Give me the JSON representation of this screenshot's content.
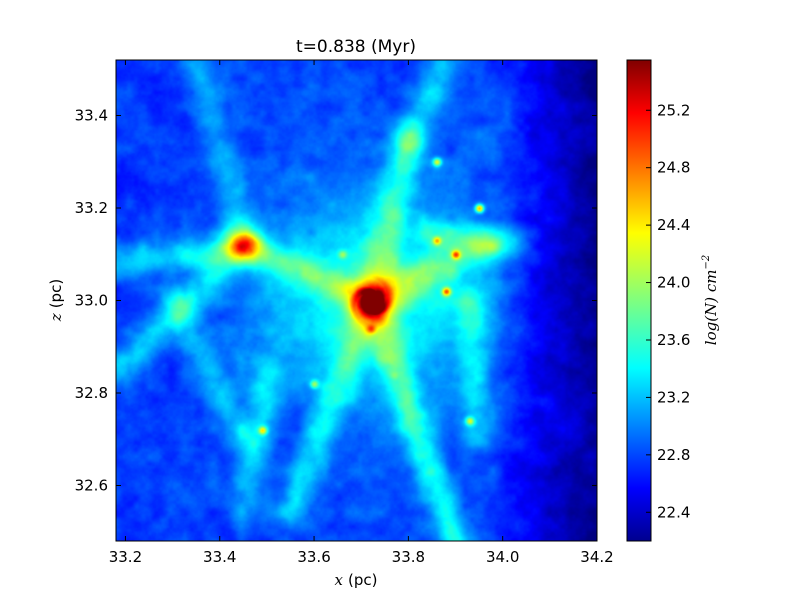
{
  "chart_data": {
    "type": "heatmap",
    "title": "t=0.838 (Myr)",
    "xlabel_var": "x",
    "xlabel_unit": "(pc)",
    "ylabel_var": "z",
    "ylabel_unit": "(pc)",
    "xlim": [
      33.18,
      34.2
    ],
    "ylim": [
      32.48,
      33.52
    ],
    "xticks": [
      "33.2",
      "33.4",
      "33.6",
      "33.8",
      "34.0",
      "34.2"
    ],
    "yticks": [
      "32.6",
      "32.8",
      "33.0",
      "33.2",
      "33.4"
    ],
    "colorbar": {
      "label": "log(N) cm^{-2}",
      "label_main": "log(N) cm",
      "label_exp": "−2",
      "range": [
        22.2,
        25.55
      ],
      "ticks": [
        "22.4",
        "22.8",
        "23.2",
        "23.6",
        "24.0",
        "24.4",
        "24.8",
        "25.2"
      ],
      "colormap": "jet"
    },
    "field": {
      "background_left_top": 22.7,
      "background_right_edge": 22.25,
      "typical_filament": 23.4,
      "core_peak": 25.3,
      "core_center": [
        33.72,
        33.0
      ],
      "dense_clumps": [
        {
          "x": 33.72,
          "z": 33.0,
          "value": 25.3
        },
        {
          "x": 33.72,
          "z": 32.94,
          "value": 25.0
        },
        {
          "x": 33.86,
          "z": 33.13,
          "value": 24.6
        },
        {
          "x": 33.9,
          "z": 33.1,
          "value": 25.0
        },
        {
          "x": 33.88,
          "z": 33.02,
          "value": 24.9
        },
        {
          "x": 33.95,
          "z": 33.2,
          "value": 24.5
        },
        {
          "x": 33.86,
          "z": 33.3,
          "value": 24.2
        },
        {
          "x": 33.49,
          "z": 32.72,
          "value": 24.4
        },
        {
          "x": 33.93,
          "z": 32.74,
          "value": 24.2
        },
        {
          "x": 33.6,
          "z": 32.82,
          "value": 24.0
        },
        {
          "x": 33.77,
          "z": 32.84,
          "value": 23.9
        },
        {
          "x": 33.66,
          "z": 33.1,
          "value": 24.0
        }
      ]
    }
  }
}
